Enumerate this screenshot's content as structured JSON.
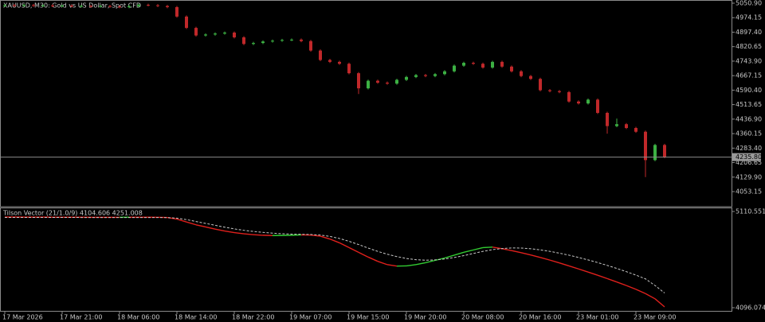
{
  "chart_data": [
    {
      "type": "candlestick",
      "title": "XAUUSD, M30:  Gold vs US Dollar, Spot CFD",
      "categories": [
        "17 Mar 2026",
        null,
        null,
        null,
        null,
        null,
        "17 Mar 21:00",
        null,
        null,
        null,
        null,
        null,
        "18 Mar 06:00",
        null,
        null,
        null,
        null,
        null,
        "18 Mar 14:00",
        null,
        null,
        null,
        null,
        null,
        "18 Mar 22:00",
        null,
        null,
        null,
        null,
        null,
        "19 Mar 07:00",
        null,
        null,
        null,
        null,
        null,
        "19 Mar 15:00",
        null,
        null,
        null,
        null,
        null,
        "19 Mar 20:00",
        null,
        null,
        null,
        null,
        null,
        "20 Mar 08:00",
        null,
        null,
        null,
        null,
        null,
        "20 Mar 16:00",
        null,
        null,
        null,
        null,
        null,
        "23 Mar 01:00",
        null,
        null,
        null,
        null,
        null,
        "23 Mar 09:00",
        null,
        null,
        null
      ],
      "open": [
        5036,
        5040,
        5038,
        5041,
        5037,
        5039,
        5036,
        5038,
        5035,
        5036,
        5034,
        5036,
        5033,
        5030,
        5035,
        5042,
        5040,
        5036,
        5030,
        4980,
        4920,
        4880,
        4885,
        4890,
        4895,
        4870,
        4835,
        4840,
        4848,
        4852,
        4856,
        4858,
        4850,
        4800,
        4750,
        4740,
        4730,
        4680,
        4600,
        4640,
        4630,
        4625,
        4645,
        4660,
        4670,
        4665,
        4675,
        4690,
        4720,
        4735,
        4730,
        4710,
        4740,
        4715,
        4690,
        4665,
        4650,
        4590,
        4585,
        4580,
        4530,
        4520,
        4540,
        4470,
        4400,
        4410,
        4390,
        4370,
        4220,
        4300
      ],
      "high": [
        5046,
        5046,
        5047,
        5047,
        5045,
        5045,
        5044,
        5044,
        5042,
        5042,
        5042,
        5042,
        5039,
        5041,
        5048,
        5048,
        5046,
        5042,
        5036,
        4986,
        4926,
        4891,
        4896,
        4901,
        4901,
        4876,
        4846,
        4854,
        4858,
        4862,
        4864,
        4864,
        4856,
        4806,
        4756,
        4746,
        4736,
        4686,
        4646,
        4646,
        4636,
        4651,
        4666,
        4676,
        4676,
        4681,
        4696,
        4726,
        4741,
        4741,
        4736,
        4746,
        4746,
        4721,
        4696,
        4671,
        4656,
        4596,
        4591,
        4586,
        4536,
        4546,
        4546,
        4476,
        4440,
        4416,
        4396,
        4376,
        4306,
        4306
      ],
      "low": [
        5030,
        5032,
        5032,
        5031,
        5031,
        5030,
        5030,
        5029,
        5029,
        5028,
        5028,
        5027,
        5024,
        5024,
        5029,
        5034,
        5030,
        5024,
        4974,
        4914,
        4874,
        4874,
        4879,
        4884,
        4864,
        4829,
        4829,
        4834,
        4842,
        4846,
        4850,
        4844,
        4794,
        4744,
        4734,
        4724,
        4674,
        4570,
        4594,
        4624,
        4619,
        4619,
        4639,
        4654,
        4659,
        4659,
        4669,
        4684,
        4714,
        4724,
        4704,
        4704,
        4709,
        4684,
        4659,
        4644,
        4584,
        4579,
        4574,
        4524,
        4514,
        4514,
        4464,
        4360,
        4394,
        4384,
        4364,
        4130,
        4214,
        4230
      ],
      "close": [
        5040,
        5038,
        5041,
        5037,
        5039,
        5036,
        5038,
        5035,
        5036,
        5034,
        5036,
        5033,
        5030,
        5035,
        5042,
        5040,
        5036,
        5030,
        4980,
        4920,
        4880,
        4885,
        4890,
        4895,
        4870,
        4835,
        4840,
        4848,
        4852,
        4856,
        4858,
        4850,
        4800,
        4750,
        4740,
        4730,
        4680,
        4600,
        4640,
        4630,
        4625,
        4645,
        4660,
        4670,
        4665,
        4675,
        4690,
        4720,
        4735,
        4730,
        4710,
        4740,
        4715,
        4690,
        4665,
        4650,
        4590,
        4585,
        4580,
        4530,
        4520,
        4540,
        4470,
        4400,
        4410,
        4390,
        4370,
        4220,
        4300,
        4236
      ],
      "up_color": "#3cb043",
      "down_color": "#c0282a",
      "ylim": [
        3973.1,
        5067.7
      ],
      "yticks": [
        {
          "value": 5050.9,
          "label": "5050.90"
        },
        4974.15,
        {
          "value": 4897.4,
          "label": "4897.40"
        },
        4820.65,
        {
          "value": 4743.9,
          "label": "4743.90"
        },
        4667.15,
        {
          "value": 4590.4,
          "label": "4590.40"
        },
        4513.65,
        {
          "value": 4436.9,
          "label": "4436.90"
        },
        4360.15,
        {
          "value": 4283.4,
          "label": "4283.40"
        },
        4206.65,
        {
          "value": 4129.9,
          "label": "4129.90"
        },
        4053.15
      ],
      "current_price": {
        "value": 4235.8,
        "label": "4235.80"
      }
    },
    {
      "type": "line",
      "title": "Tilson Vector (21/1.0/9) 4104.606 4251.008",
      "series": [
        {
          "color": "#e0201c",
          "up_color": "#32cd32",
          "values": [
            5052,
            5052,
            5051,
            5051,
            5051,
            5050,
            5050,
            5050,
            5050,
            5049,
            5049,
            5049,
            5049,
            5050,
            5050,
            5050,
            5049,
            5047,
            5030,
            5000,
            4970,
            4948,
            4925,
            4905,
            4888,
            4875,
            4866,
            4860,
            4857,
            4858,
            4860,
            4864,
            4862,
            4850,
            4820,
            4780,
            4730,
            4680,
            4630,
            4585,
            4550,
            4535,
            4537,
            4550,
            4570,
            4595,
            4620,
            4650,
            4680,
            4705,
            4730,
            4735,
            4718,
            4698,
            4676,
            4652,
            4626,
            4598,
            4568,
            4537,
            4505,
            4472,
            4438,
            4403,
            4367,
            4330,
            4290,
            4245,
            4190,
            4104.606
          ]
        },
        {
          "color": "#c8c8c8",
          "dashed": true,
          "values": [
            5048,
            5048,
            5048,
            5048,
            5048,
            5048,
            5048,
            5048,
            5047,
            5047,
            5047,
            5047,
            5047,
            5047,
            5047,
            5047,
            5047,
            5046,
            5040,
            5025,
            5005,
            4985,
            4965,
            4945,
            4927,
            4912,
            4900,
            4890,
            4882,
            4876,
            4872,
            4870,
            4868,
            4862,
            4848,
            4826,
            4796,
            4762,
            4725,
            4690,
            4660,
            4635,
            4615,
            4602,
            4597,
            4600,
            4610,
            4625,
            4645,
            4668,
            4690,
            4708,
            4720,
            4726,
            4725,
            4718,
            4706,
            4690,
            4671,
            4650,
            4626,
            4600,
            4572,
            4542,
            4510,
            4476,
            4440,
            4400,
            4330,
            4251.008
          ]
        }
      ],
      "ylim": [
        4054.2,
        5144.1
      ],
      "yticks": [
        5110.551,
        4096.074
      ]
    }
  ]
}
